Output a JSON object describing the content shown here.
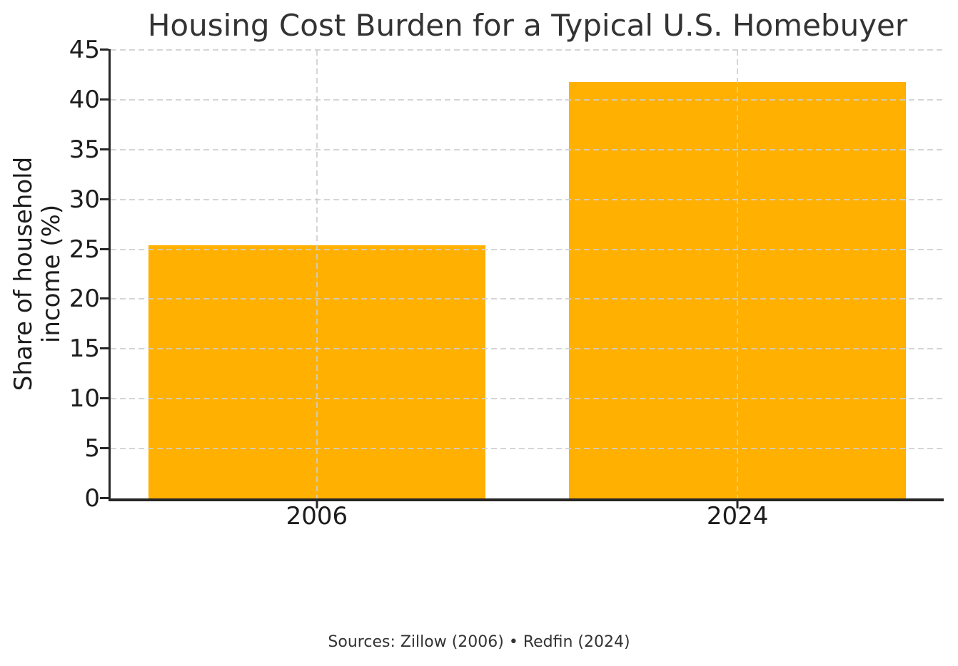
{
  "chart_data": {
    "type": "bar",
    "title": "Housing Cost Burden for a Typical U.S. Homebuyer",
    "categories": [
      "2006",
      "2024"
    ],
    "values": [
      25.4,
      41.8
    ],
    "xlabel": "",
    "ylabel": "Share of household income (%)",
    "ylabel_lines": [
      "Share of household",
      "income (%)"
    ],
    "ylim": [
      0,
      45
    ],
    "yticks": [
      0,
      5,
      10,
      15,
      20,
      25,
      30,
      35,
      40,
      45
    ],
    "grid": true,
    "grid_style": "dashed",
    "legend": "none",
    "source_note": "Sources: Zillow (2006) • Redfin (2024)",
    "colors": {
      "bar": "#FFB000",
      "grid": "#cecece",
      "axis": "#262626",
      "text": "#333333"
    },
    "layout": {
      "bar_centers_pct": [
        24.75,
        75.25
      ],
      "bar_width_pct": 40.4
    }
  }
}
